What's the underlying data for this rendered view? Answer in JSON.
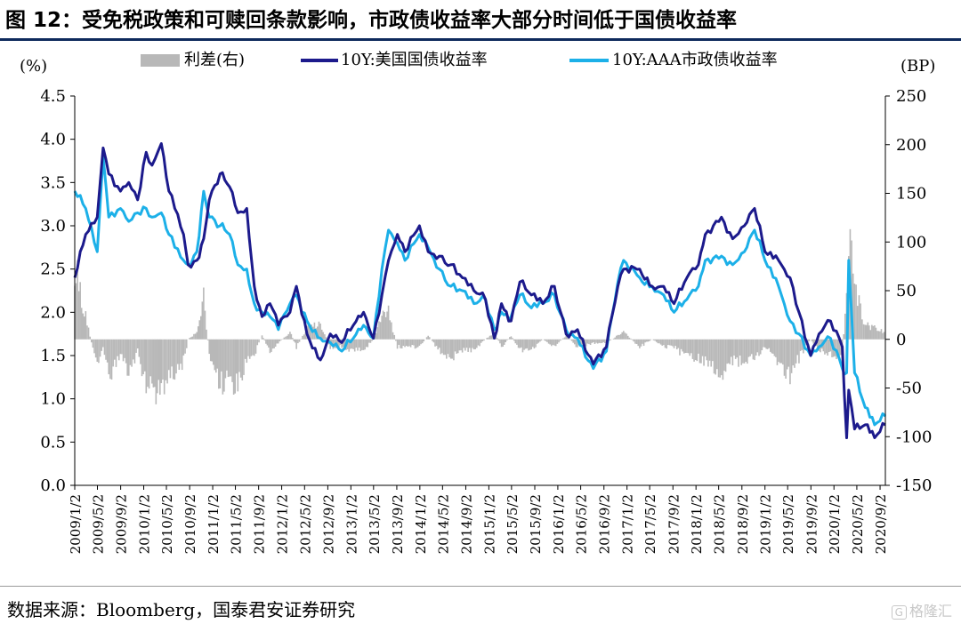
{
  "header": {
    "title": "图 12：受免税政策和可赎回条款影响，市政债收益率大部分时间低于国债收益率"
  },
  "footer": {
    "source": "数据来源：Bloomberg，国泰君安证券研究",
    "watermark": "格隆汇"
  },
  "chart_data": {
    "type": "line",
    "left_axis_unit": "(%)",
    "right_axis_unit": "(BP)",
    "left_ylim": [
      0.0,
      4.5
    ],
    "right_ylim": [
      -150,
      250
    ],
    "left_ticks": [
      "0.0",
      "0.5",
      "1.0",
      "1.5",
      "2.0",
      "2.5",
      "3.0",
      "3.5",
      "4.0",
      "4.5"
    ],
    "right_ticks": [
      "-150",
      "-100",
      "-50",
      "0",
      "50",
      "100",
      "150",
      "200",
      "250"
    ],
    "x_ticks": [
      "2009/1/2",
      "2009/5/2",
      "2009/9/2",
      "2010/1/2",
      "2010/5/2",
      "2010/9/2",
      "2011/1/2",
      "2011/5/2",
      "2011/9/2",
      "2012/1/2",
      "2012/5/2",
      "2012/9/2",
      "2013/1/2",
      "2013/5/2",
      "2013/9/2",
      "2014/1/2",
      "2014/5/2",
      "2014/9/2",
      "2015/1/2",
      "2015/5/2",
      "2015/9/2",
      "2016/1/2",
      "2016/5/2",
      "2016/9/2",
      "2017/1/2",
      "2017/5/2",
      "2017/9/2",
      "2018/1/2",
      "2018/5/2",
      "2018/9/2",
      "2019/1/2",
      "2019/5/2",
      "2019/9/2",
      "2020/1/2",
      "2020/5/2",
      "2020/9/2"
    ],
    "legend": [
      "利差(右)",
      "10Y:美国国债收益率",
      "10Y:AAA市政债收益率"
    ],
    "legend_position": "top",
    "colors": {
      "spread": "#b8b8b8",
      "treasury": "#1c1a8c",
      "muni": "#1cb0e8"
    },
    "x_dates": [
      "2009-01-02",
      "2009-03-01",
      "2009-05-01",
      "2009-06-01",
      "2009-07-01",
      "2009-09-01",
      "2009-10-15",
      "2009-12-01",
      "2010-01-15",
      "2010-02-15",
      "2010-04-05",
      "2010-05-15",
      "2010-06-15",
      "2010-08-01",
      "2010-08-25",
      "2010-10-10",
      "2010-11-15",
      "2010-12-15",
      "2011-02-10",
      "2011-04-01",
      "2011-05-15",
      "2011-07-01",
      "2011-08-10",
      "2011-09-20",
      "2011-11-01",
      "2011-12-15",
      "2012-02-15",
      "2012-03-20",
      "2012-05-15",
      "2012-07-25",
      "2012-09-15",
      "2012-11-15",
      "2013-01-15",
      "2013-03-10",
      "2013-05-01",
      "2013-06-15",
      "2013-07-20",
      "2013-09-05",
      "2013-10-15",
      "2013-12-31",
      "2014-02-15",
      "2014-04-15",
      "2014-06-15",
      "2014-08-15",
      "2014-10-15",
      "2014-12-15",
      "2015-01-31",
      "2015-03-10",
      "2015-04-30",
      "2015-06-15",
      "2015-08-15",
      "2015-10-15",
      "2015-12-15",
      "2016-02-15",
      "2016-04-15",
      "2016-07-08",
      "2016-09-15",
      "2016-11-15",
      "2016-12-15",
      "2017-03-10",
      "2017-05-15",
      "2017-07-15",
      "2017-09-08",
      "2017-11-15",
      "2018-01-15",
      "2018-02-20",
      "2018-05-17",
      "2018-07-15",
      "2018-09-15",
      "2018-11-08",
      "2019-01-02",
      "2019-03-15",
      "2019-05-15",
      "2019-07-01",
      "2019-09-01",
      "2019-10-15",
      "2019-12-15",
      "2020-02-15",
      "2020-03-09",
      "2020-03-20",
      "2020-04-20",
      "2020-06-15",
      "2020-08-04",
      "2020-09-30"
    ],
    "series": [
      {
        "name": "10Y:美国国债收益率",
        "values": [
          2.4,
          2.9,
          3.1,
          3.9,
          3.6,
          3.4,
          3.5,
          3.3,
          3.85,
          3.7,
          3.95,
          3.4,
          3.2,
          2.9,
          2.55,
          2.6,
          2.85,
          3.3,
          3.6,
          3.45,
          3.15,
          3.2,
          2.3,
          1.95,
          2.1,
          1.85,
          2.0,
          2.3,
          1.75,
          1.45,
          1.75,
          1.65,
          1.85,
          2.0,
          1.7,
          2.2,
          2.6,
          2.9,
          2.7,
          3.0,
          2.7,
          2.65,
          2.55,
          2.4,
          2.25,
          2.15,
          1.7,
          2.1,
          1.9,
          2.35,
          2.2,
          2.1,
          2.3,
          1.75,
          1.8,
          1.4,
          1.6,
          2.3,
          2.5,
          2.5,
          2.3,
          2.3,
          2.1,
          2.4,
          2.55,
          2.9,
          3.1,
          2.85,
          3.0,
          3.2,
          2.7,
          2.6,
          2.4,
          2.0,
          1.5,
          1.75,
          1.9,
          1.6,
          0.55,
          1.1,
          0.65,
          0.7,
          0.55,
          0.7
        ]
      },
      {
        "name": "10Y:AAA市政债收益率",
        "values": [
          3.4,
          3.2,
          2.7,
          3.8,
          3.1,
          3.2,
          3.05,
          3.15,
          3.2,
          3.1,
          3.15,
          2.9,
          2.75,
          2.6,
          2.55,
          2.7,
          3.4,
          3.1,
          3.0,
          2.9,
          2.55,
          2.5,
          2.1,
          2.0,
          1.95,
          1.8,
          2.1,
          2.2,
          1.9,
          1.7,
          1.65,
          1.55,
          1.7,
          1.85,
          1.7,
          2.5,
          2.95,
          2.8,
          2.6,
          2.9,
          2.75,
          2.5,
          2.3,
          2.25,
          2.1,
          2.15,
          1.8,
          2.0,
          1.95,
          2.2,
          2.05,
          2.1,
          2.2,
          1.8,
          1.7,
          1.35,
          1.55,
          2.35,
          2.6,
          2.4,
          2.3,
          2.2,
          2.0,
          2.15,
          2.3,
          2.6,
          2.65,
          2.55,
          2.7,
          2.95,
          2.6,
          2.3,
          1.9,
          1.75,
          1.5,
          1.6,
          1.7,
          1.35,
          1.3,
          2.6,
          1.3,
          0.9,
          0.7,
          0.8
        ]
      },
      {
        "name": "利差(右)",
        "values": [
          100,
          30,
          -40,
          -10,
          -50,
          -20,
          -45,
          -15,
          -65,
          -60,
          -80,
          -50,
          -45,
          -30,
          0,
          10,
          55,
          -20,
          -60,
          -55,
          -60,
          -30,
          -20,
          5,
          -15,
          -5,
          10,
          -10,
          15,
          20,
          -10,
          -10,
          -15,
          -15,
          0,
          30,
          35,
          -10,
          -10,
          -10,
          5,
          -15,
          -25,
          -15,
          -15,
          0,
          10,
          -10,
          5,
          -15,
          -15,
          0,
          -10,
          5,
          -10,
          -5,
          -5,
          5,
          10,
          -10,
          0,
          -10,
          -10,
          -25,
          -25,
          -30,
          -45,
          -30,
          -30,
          -25,
          -10,
          -30,
          -50,
          -25,
          0,
          -15,
          -20,
          -25,
          75,
          150,
          65,
          20,
          15,
          10
        ]
      }
    ]
  }
}
